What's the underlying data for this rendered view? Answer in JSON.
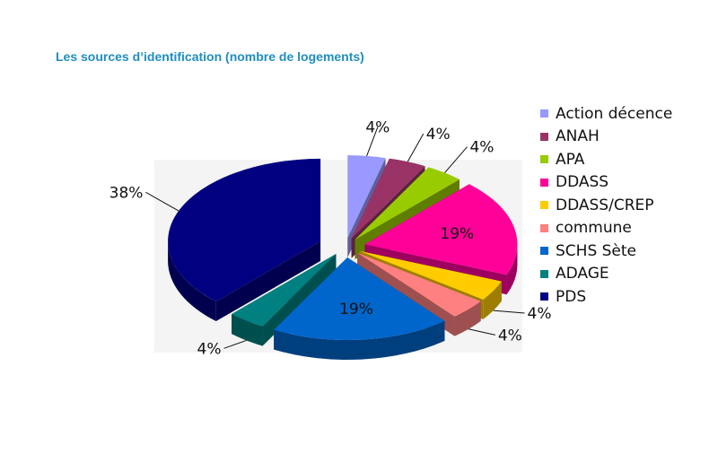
{
  "title": "Les sources d’identification (nombre de logements)",
  "chart_data": {
    "type": "pie",
    "title": "Les sources d’identification (nombre de logements)",
    "unit": "%",
    "legend_position": "right",
    "slices": [
      {
        "label": "Action décence",
        "value": 4,
        "value_label": "4%",
        "color": "#9999ff"
      },
      {
        "label": "ANAH",
        "value": 4,
        "value_label": "4%",
        "color": "#993366"
      },
      {
        "label": "APA",
        "value": 4,
        "value_label": "4%",
        "color": "#99cc00"
      },
      {
        "label": "DDASS",
        "value": 19,
        "value_label": "19%",
        "color": "#ff0099"
      },
      {
        "label": "DDASS/CREP",
        "value": 4,
        "value_label": "4%",
        "color": "#ffcc00"
      },
      {
        "label": "commune",
        "value": 4,
        "value_label": "4%",
        "color": "#ff8080"
      },
      {
        "label": "SCHS Sète",
        "value": 19,
        "value_label": "19%",
        "color": "#0066cc"
      },
      {
        "label": "ADAGE",
        "value": 4,
        "value_label": "4%",
        "color": "#008080"
      },
      {
        "label": "PDS",
        "value": 38,
        "value_label": "38%",
        "color": "#000080"
      }
    ]
  }
}
